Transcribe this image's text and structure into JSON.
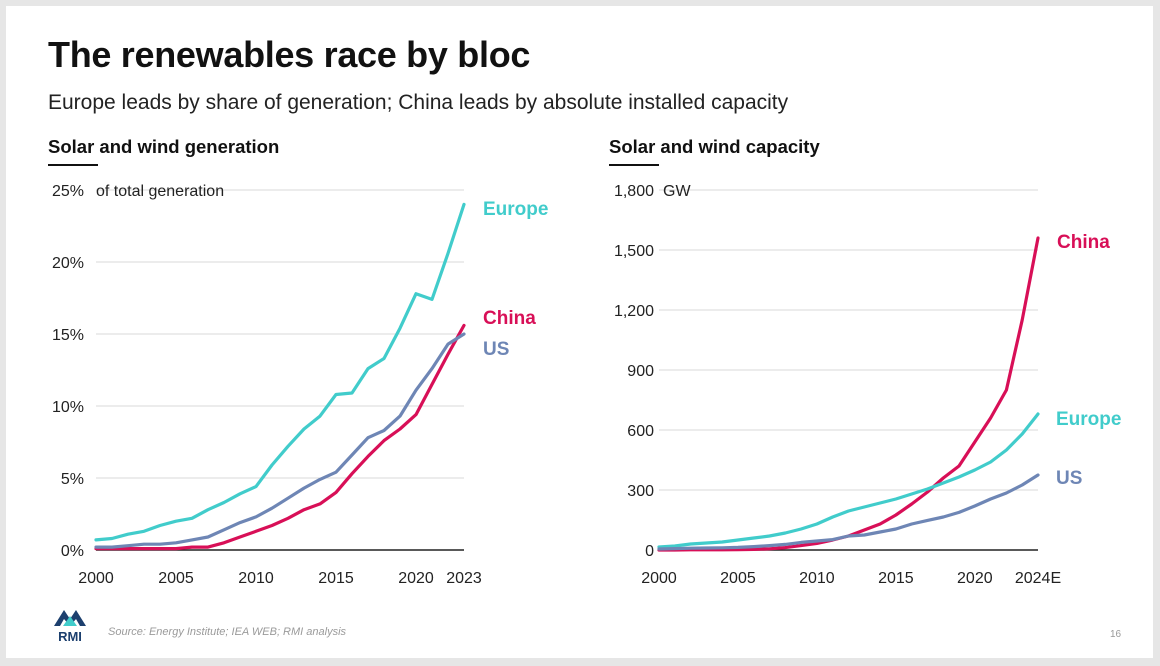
{
  "slide": {
    "title": "The renewables race by bloc",
    "subtitle": "Europe leads by share of generation; China leads by absolute installed capacity",
    "source": "Source: Energy Institute; IEA WEB; RMI analysis",
    "page_number": "16",
    "logo_text": "RMI"
  },
  "colors": {
    "europe": "#41CCCB",
    "china": "#D80F57",
    "us": "#6E86B5",
    "grid": "#d9d9d9",
    "axis": "#222222",
    "logo_blue": "#1c3f6e",
    "logo_teal": "#41CCCB"
  },
  "chart_data": [
    {
      "type": "line",
      "panel_title": "Solar and wind generation",
      "unit_label": "of total generation",
      "x_ticks": [
        "2000",
        "2005",
        "2010",
        "2015",
        "2020",
        "2023"
      ],
      "x_tick_values": [
        2000,
        2005,
        2010,
        2015,
        2020,
        2023
      ],
      "y_ticks": [
        "0%",
        "5%",
        "10%",
        "15%",
        "20%",
        "25%"
      ],
      "y_tick_values": [
        0,
        5,
        10,
        15,
        20,
        25
      ],
      "xlim": [
        2000,
        2023
      ],
      "ylim": [
        0,
        25
      ],
      "grid": "horizontal",
      "x": [
        2000,
        2001,
        2002,
        2003,
        2004,
        2005,
        2006,
        2007,
        2008,
        2009,
        2010,
        2011,
        2012,
        2013,
        2014,
        2015,
        2016,
        2017,
        2018,
        2019,
        2020,
        2021,
        2022,
        2023
      ],
      "series": [
        {
          "name": "Europe",
          "color_key": "europe",
          "values": [
            0.7,
            0.8,
            1.1,
            1.3,
            1.7,
            2.0,
            2.2,
            2.8,
            3.3,
            3.9,
            4.4,
            5.9,
            7.2,
            8.4,
            9.3,
            10.8,
            10.9,
            12.6,
            13.3,
            15.4,
            17.8,
            17.4,
            20.6,
            24.0
          ]
        },
        {
          "name": "China",
          "color_key": "china",
          "values": [
            0.1,
            0.1,
            0.1,
            0.1,
            0.1,
            0.1,
            0.2,
            0.2,
            0.5,
            0.9,
            1.3,
            1.7,
            2.2,
            2.8,
            3.2,
            4.0,
            5.3,
            6.5,
            7.6,
            8.4,
            9.4,
            11.5,
            13.6,
            15.6
          ]
        },
        {
          "name": "US",
          "color_key": "us",
          "values": [
            0.2,
            0.2,
            0.3,
            0.4,
            0.4,
            0.5,
            0.7,
            0.9,
            1.4,
            1.9,
            2.3,
            2.9,
            3.6,
            4.3,
            4.9,
            5.4,
            6.6,
            7.8,
            8.3,
            9.3,
            11.1,
            12.6,
            14.3,
            15.0
          ]
        }
      ]
    },
    {
      "type": "line",
      "panel_title": "Solar and wind capacity",
      "unit_label": "GW",
      "x_ticks": [
        "2000",
        "2005",
        "2010",
        "2015",
        "2020",
        "2024E"
      ],
      "x_tick_values": [
        2000,
        2005,
        2010,
        2015,
        2020,
        2024
      ],
      "y_ticks": [
        "0",
        "300",
        "600",
        "900",
        "1,200",
        "1,500",
        "1,800"
      ],
      "y_tick_values": [
        0,
        300,
        600,
        900,
        1200,
        1500,
        1800
      ],
      "xlim": [
        2000,
        2024
      ],
      "ylim": [
        0,
        1800
      ],
      "grid": "horizontal",
      "x": [
        2000,
        2001,
        2002,
        2003,
        2004,
        2005,
        2006,
        2007,
        2008,
        2009,
        2010,
        2011,
        2012,
        2013,
        2014,
        2015,
        2016,
        2017,
        2018,
        2019,
        2020,
        2021,
        2022,
        2023,
        2024
      ],
      "series": [
        {
          "name": "China",
          "color_key": "china",
          "values": [
            0,
            0,
            1,
            1,
            1,
            2,
            3,
            6,
            12,
            22,
            33,
            50,
            70,
            100,
            130,
            175,
            230,
            290,
            360,
            420,
            540,
            660,
            800,
            1150,
            1560
          ]
        },
        {
          "name": "Europe",
          "color_key": "europe",
          "values": [
            15,
            20,
            30,
            35,
            40,
            50,
            60,
            70,
            85,
            105,
            130,
            165,
            195,
            215,
            235,
            255,
            280,
            305,
            335,
            365,
            400,
            440,
            500,
            580,
            680
          ]
        },
        {
          "name": "US",
          "color_key": "us",
          "values": [
            5,
            7,
            9,
            10,
            11,
            13,
            17,
            22,
            28,
            38,
            45,
            52,
            70,
            75,
            90,
            105,
            130,
            148,
            165,
            188,
            220,
            255,
            285,
            325,
            375
          ]
        }
      ]
    }
  ]
}
